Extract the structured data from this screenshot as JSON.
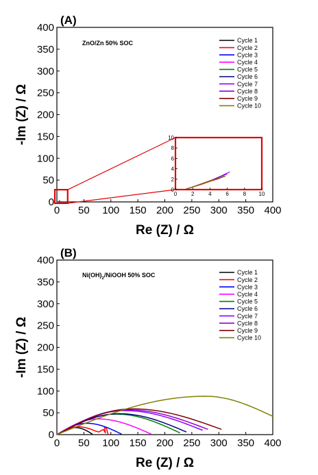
{
  "chart_data": [
    {
      "type": "line",
      "panel": "(A)",
      "annotation": "ZnO/Zn   50% SOC",
      "xlabel": "Re (Z) / Ω",
      "ylabel": "-Im (Z) / Ω",
      "xlim": [
        0,
        400
      ],
      "ylim": [
        0,
        400
      ],
      "xticks": [
        "0",
        "50",
        "100",
        "150",
        "200",
        "250",
        "300",
        "350",
        "400"
      ],
      "yticks": [
        "0",
        "50",
        "100",
        "150",
        "200",
        "250",
        "300",
        "350",
        "400"
      ],
      "legend_position": "top-right",
      "series": [
        {
          "name": "Cycle 1",
          "color": "#000000",
          "x": [
            1.2,
            2,
            3,
            4,
            5
          ],
          "y": [
            0.1,
            0.5,
            1.0,
            1.6,
            2.1
          ]
        },
        {
          "name": "Cycle 2",
          "color": "#ff0000",
          "x": [
            1.2,
            2,
            3,
            4,
            5.2
          ],
          "y": [
            0.1,
            0.5,
            1.0,
            1.6,
            2.2
          ]
        },
        {
          "name": "Cycle 3",
          "color": "#0000ff",
          "x": [
            1.2,
            2,
            3,
            4,
            5.5
          ],
          "y": [
            0.1,
            0.5,
            1.1,
            1.7,
            2.4
          ]
        },
        {
          "name": "Cycle 4",
          "color": "#ff00ff",
          "x": [
            1.2,
            2,
            3,
            4,
            5.6
          ],
          "y": [
            0.1,
            0.5,
            1.1,
            1.7,
            2.5
          ]
        },
        {
          "name": "Cycle 5",
          "color": "#008000",
          "x": [
            1.2,
            2,
            3,
            4,
            5.6
          ],
          "y": [
            0.1,
            0.5,
            1.1,
            1.7,
            2.5
          ]
        },
        {
          "name": "Cycle 6",
          "color": "#000080",
          "x": [
            1.2,
            2,
            3,
            4,
            5.7
          ],
          "y": [
            0.1,
            0.5,
            1.1,
            1.7,
            2.6
          ]
        },
        {
          "name": "Cycle 7",
          "color": "#8b00ff",
          "x": [
            1.2,
            2,
            3,
            4,
            5,
            6
          ],
          "y": [
            0.1,
            0.5,
            1.1,
            1.7,
            2.4,
            3.0
          ]
        },
        {
          "name": "Cycle 8",
          "color": "#9400d3",
          "x": [
            1.2,
            2,
            3,
            4,
            5,
            6.3
          ],
          "y": [
            0.1,
            0.5,
            1.1,
            1.7,
            2.4,
            3.4
          ]
        },
        {
          "name": "Cycle 9",
          "color": "#800000",
          "x": [
            1.2,
            2,
            3,
            4,
            5.8
          ],
          "y": [
            0.1,
            0.5,
            1.1,
            1.7,
            2.6
          ]
        },
        {
          "name": "Cycle 10",
          "color": "#808000",
          "x": [
            1.2,
            2,
            3,
            4,
            5.8
          ],
          "y": [
            0.1,
            0.5,
            1.1,
            1.7,
            2.6
          ]
        }
      ],
      "inset": {
        "xlim": [
          0,
          10
        ],
        "ylim": [
          0,
          10
        ],
        "xticks": [
          "0",
          "2",
          "4",
          "6",
          "8",
          "10"
        ],
        "yticks": [
          "0",
          "2",
          "4",
          "6",
          "8",
          "10"
        ],
        "zoom_box": {
          "xlim": [
            0,
            20
          ],
          "ylim": [
            0,
            28
          ]
        }
      }
    },
    {
      "type": "line",
      "panel": "(B)",
      "annotation_main": "Ni(OH)",
      "annotation_sub": "2",
      "annotation_rest": "/NiOOH   50% SOC",
      "xlabel": "Re (Z) / Ω",
      "ylabel": "-Im (Z) / Ω",
      "xlim": [
        0,
        400
      ],
      "ylim": [
        0,
        400
      ],
      "xticks": [
        "0",
        "50",
        "100",
        "150",
        "200",
        "250",
        "300",
        "350",
        "400"
      ],
      "yticks": [
        "0",
        "50",
        "100",
        "150",
        "200",
        "250",
        "300",
        "350",
        "400"
      ],
      "legend_position": "top-right",
      "series": [
        {
          "name": "Cycle 1",
          "color": "#000000",
          "peak_x": 35,
          "peak_y": 16,
          "end_x": 66,
          "end_y": 1,
          "tail": []
        },
        {
          "name": "Cycle 2",
          "color": "#ff0000",
          "peak_x": 40,
          "peak_y": 18,
          "end_x": 72,
          "end_y": 8,
          "tail": [
            [
              78,
              6
            ],
            [
              86,
              12
            ],
            [
              90,
              4
            ],
            [
              88,
              18
            ],
            [
              92,
              14
            ],
            [
              95,
              0
            ]
          ]
        },
        {
          "name": "Cycle 3",
          "color": "#0000ff",
          "peak_x": 55,
          "peak_y": 26,
          "end_x": 120,
          "end_y": 1,
          "tail": []
        },
        {
          "name": "Cycle 4",
          "color": "#ff00ff",
          "peak_x": 75,
          "peak_y": 36,
          "end_x": 175,
          "end_y": 1,
          "tail": []
        },
        {
          "name": "Cycle 5",
          "color": "#008000",
          "peak_x": 110,
          "peak_y": 47,
          "end_x": 228,
          "end_y": 4,
          "tail": []
        },
        {
          "name": "Cycle 6",
          "color": "#000080",
          "peak_x": 115,
          "peak_y": 48,
          "end_x": 240,
          "end_y": 6,
          "tail": []
        },
        {
          "name": "Cycle 7",
          "color": "#8b00ff",
          "peak_x": 125,
          "peak_y": 55,
          "end_x": 270,
          "end_y": 10,
          "tail": []
        },
        {
          "name": "Cycle 8",
          "color": "#9400d3",
          "peak_x": 130,
          "peak_y": 57,
          "end_x": 280,
          "end_y": 12,
          "tail": []
        },
        {
          "name": "Cycle 9",
          "color": "#800000",
          "peak_x": 140,
          "peak_y": 59,
          "end_x": 305,
          "end_y": 12,
          "tail": []
        },
        {
          "name": "Cycle 10",
          "color": "#808000",
          "peak_x": 275,
          "peak_y": 88,
          "end_x": 400,
          "end_y": 42,
          "tail": []
        }
      ]
    }
  ]
}
